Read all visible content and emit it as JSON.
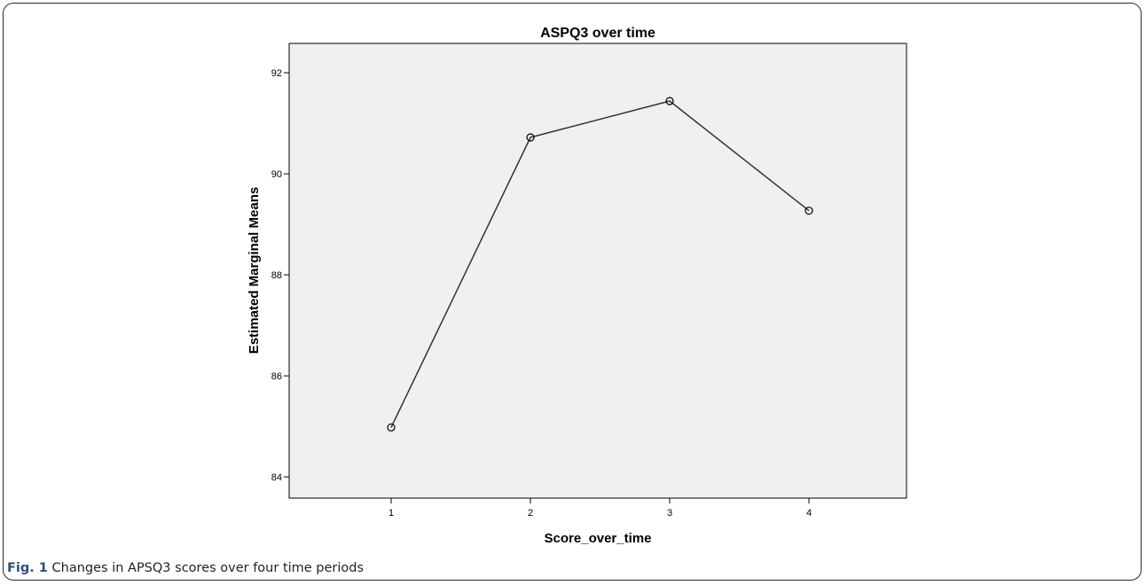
{
  "caption": {
    "fig_label": "Fig. 1",
    "text": "Changes in APSQ3 scores over four time periods"
  },
  "chart_data": {
    "type": "line",
    "title": "ASPQ3 over time",
    "xlabel": "Score_over_time",
    "ylabel": "Estimated Marginal Means",
    "categories": [
      "1",
      "2",
      "3",
      "4"
    ],
    "series": [
      {
        "values": [
          84.98,
          90.72,
          91.44,
          89.27
        ]
      }
    ],
    "ylim": [
      83.58,
      92.58
    ],
    "yticks": [
      84,
      86,
      88,
      90,
      92
    ],
    "grid": false,
    "plot_background": "#f0f0f0",
    "line_color": "#333333"
  }
}
